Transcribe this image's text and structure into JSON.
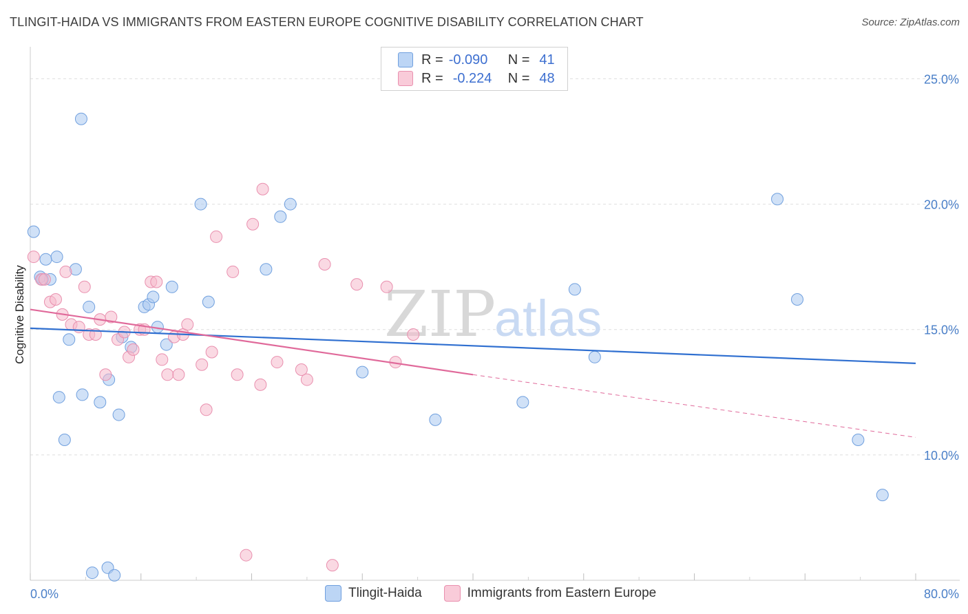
{
  "title": "TLINGIT-HAIDA VS IMMIGRANTS FROM EASTERN EUROPE COGNITIVE DISABILITY CORRELATION CHART",
  "source": "Source: ZipAtlas.com",
  "watermark": {
    "zip": "ZIP",
    "atlas": "atlas"
  },
  "legend": {
    "rows": [
      {
        "r_label": "R =",
        "r_value": "-0.090",
        "n_label": "N =",
        "n_value": "41",
        "color": "#a9c8f0"
      },
      {
        "r_label": "R =",
        "r_value": "-0.224",
        "n_label": "N =",
        "n_value": "48",
        "color": "#f6b9cc"
      }
    ]
  },
  "bottom_legend": [
    {
      "label": "Tlingit-Haida",
      "color": "#a9c8f0"
    },
    {
      "label": "Immigrants from Eastern Europe",
      "color": "#f6b9cc"
    }
  ],
  "chart_data": {
    "type": "scatter",
    "xlabel": "",
    "ylabel": "Cognitive Disability",
    "xlim": [
      0,
      80
    ],
    "ylim": [
      5,
      26
    ],
    "x_tick_labels": [
      "0.0%",
      "80.0%"
    ],
    "y_ticks": [
      10,
      15,
      20,
      25
    ],
    "y_tick_labels": [
      "10.0%",
      "15.0%",
      "20.0%",
      "25.0%"
    ],
    "series": [
      {
        "name": "Tlingit-Haida",
        "color": "#a9c8f0",
        "stroke": "#6f9fde",
        "trend": {
          "x": [
            0,
            80
          ],
          "y": [
            15.05,
            13.65
          ],
          "color": "#2f6fd0"
        },
        "points": [
          [
            0.3,
            18.9
          ],
          [
            4.6,
            23.4
          ],
          [
            1.4,
            17.8
          ],
          [
            2.4,
            17.9
          ],
          [
            0.9,
            17.1
          ],
          [
            1.8,
            17.0
          ],
          [
            4.1,
            17.4
          ],
          [
            5.3,
            15.9
          ],
          [
            3.5,
            14.6
          ],
          [
            2.6,
            12.3
          ],
          [
            4.7,
            12.4
          ],
          [
            6.3,
            12.1
          ],
          [
            7.1,
            13.0
          ],
          [
            8.0,
            11.6
          ],
          [
            3.1,
            10.6
          ],
          [
            8.3,
            14.7
          ],
          [
            9.1,
            14.3
          ],
          [
            10.3,
            15.9
          ],
          [
            10.7,
            16.0
          ],
          [
            11.1,
            16.3
          ],
          [
            11.5,
            15.1
          ],
          [
            12.3,
            14.4
          ],
          [
            12.8,
            16.7
          ],
          [
            15.4,
            20.0
          ],
          [
            16.1,
            16.1
          ],
          [
            21.3,
            17.4
          ],
          [
            22.6,
            19.5
          ],
          [
            23.5,
            20.0
          ],
          [
            30.0,
            13.3
          ],
          [
            36.6,
            11.4
          ],
          [
            44.5,
            12.1
          ],
          [
            49.2,
            16.6
          ],
          [
            51.0,
            13.9
          ],
          [
            67.5,
            20.2
          ],
          [
            69.3,
            16.2
          ],
          [
            74.8,
            10.6
          ],
          [
            77.0,
            8.4
          ],
          [
            5.6,
            5.3
          ],
          [
            7.0,
            5.5
          ],
          [
            7.6,
            5.2
          ],
          [
            1.1,
            17.0
          ]
        ]
      },
      {
        "name": "Immigrants from Eastern Europe",
        "color": "#f6b9cc",
        "stroke": "#e98fae",
        "trend": {
          "x": [
            0,
            40
          ],
          "y": [
            15.8,
            13.2
          ],
          "color": "#e0699a",
          "dash": {
            "x": [
              40,
              80
            ],
            "y": [
              13.2,
              10.7
            ]
          }
        },
        "points": [
          [
            0.3,
            17.9
          ],
          [
            1.0,
            17.0
          ],
          [
            1.8,
            16.1
          ],
          [
            2.3,
            16.2
          ],
          [
            2.9,
            15.6
          ],
          [
            3.2,
            17.3
          ],
          [
            3.7,
            15.2
          ],
          [
            4.4,
            15.1
          ],
          [
            4.9,
            16.7
          ],
          [
            5.3,
            14.8
          ],
          [
            5.9,
            14.8
          ],
          [
            6.3,
            15.4
          ],
          [
            6.8,
            13.2
          ],
          [
            7.3,
            15.5
          ],
          [
            7.9,
            14.6
          ],
          [
            8.5,
            14.9
          ],
          [
            8.9,
            13.9
          ],
          [
            9.3,
            14.2
          ],
          [
            9.9,
            15.0
          ],
          [
            10.3,
            15.0
          ],
          [
            10.9,
            16.9
          ],
          [
            11.4,
            16.9
          ],
          [
            11.9,
            13.8
          ],
          [
            12.4,
            13.2
          ],
          [
            13.0,
            14.7
          ],
          [
            13.4,
            13.2
          ],
          [
            13.8,
            14.8
          ],
          [
            14.2,
            15.2
          ],
          [
            15.5,
            13.6
          ],
          [
            15.9,
            11.8
          ],
          [
            16.4,
            14.1
          ],
          [
            16.8,
            18.7
          ],
          [
            18.7,
            13.2
          ],
          [
            18.3,
            17.3
          ],
          [
            20.1,
            19.2
          ],
          [
            20.8,
            12.8
          ],
          [
            21.0,
            20.6
          ],
          [
            22.3,
            13.7
          ],
          [
            24.5,
            13.4
          ],
          [
            25.0,
            13.0
          ],
          [
            26.6,
            17.6
          ],
          [
            29.5,
            16.8
          ],
          [
            32.2,
            16.7
          ],
          [
            33.0,
            13.7
          ],
          [
            34.6,
            14.8
          ],
          [
            19.5,
            6.0
          ],
          [
            27.3,
            5.6
          ],
          [
            1.3,
            17.0
          ]
        ]
      }
    ]
  }
}
